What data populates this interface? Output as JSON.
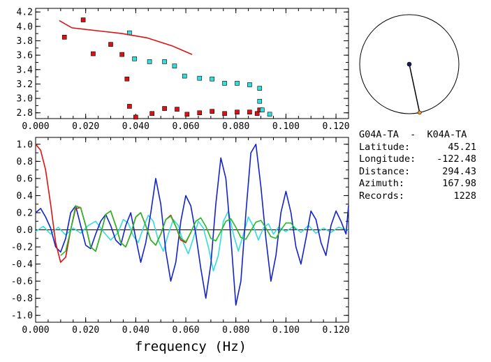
{
  "station_pair": "G04A-TA  -  K04A-TA",
  "info": [
    {
      "key": "Latitude:",
      "value": "45.21"
    },
    {
      "key": "Longitude:",
      "value": "-122.48"
    },
    {
      "key": "Distance:",
      "value": "294.43"
    },
    {
      "key": "Azimuth:",
      "value": "167.98"
    },
    {
      "key": "Records:",
      "value": "1228"
    }
  ],
  "colors": {
    "red": "#dd1111",
    "cyan": "#33dddd",
    "blue": "#1122cc",
    "green": "#22bb22",
    "orange": "#f0a020"
  },
  "chart_data": [
    {
      "type": "scatter",
      "xlim": [
        0.0,
        0.125
      ],
      "ylim": [
        2.72,
        4.25
      ],
      "x_ticks": [
        "0.000",
        "0.020",
        "0.040",
        "0.060",
        "0.080",
        "0.100",
        "0.120"
      ],
      "y_ticks": [
        "2.8",
        "3.0",
        "3.2",
        "3.4",
        "3.6",
        "3.8",
        "4.0",
        "4.2"
      ],
      "series": [
        {
          "marker": "square",
          "color": "red",
          "points": [
            [
              0.0115,
              3.85
            ],
            [
              0.019,
              4.09
            ],
            [
              0.023,
              3.62
            ],
            [
              0.03,
              3.75
            ],
            [
              0.0345,
              3.61
            ],
            [
              0.0365,
              3.27
            ],
            [
              0.0375,
              2.89
            ],
            [
              0.04,
              2.74
            ],
            [
              0.0465,
              2.79
            ],
            [
              0.0515,
              2.86
            ],
            [
              0.0565,
              2.85
            ],
            [
              0.0605,
              2.78
            ],
            [
              0.0655,
              2.8
            ],
            [
              0.0705,
              2.82
            ],
            [
              0.0755,
              2.79
            ],
            [
              0.0805,
              2.81
            ],
            [
              0.0855,
              2.81
            ],
            [
              0.0885,
              2.79
            ],
            [
              0.0895,
              2.84
            ]
          ]
        },
        {
          "marker": "square",
          "color": "cyan",
          "points": [
            [
              0.0375,
              3.91
            ],
            [
              0.0395,
              3.55
            ],
            [
              0.0455,
              3.51
            ],
            [
              0.0515,
              3.51
            ],
            [
              0.0555,
              3.45
            ],
            [
              0.0595,
              3.31
            ],
            [
              0.0655,
              3.28
            ],
            [
              0.0705,
              3.27
            ],
            [
              0.0755,
              3.21
            ],
            [
              0.0805,
              3.21
            ],
            [
              0.0855,
              3.19
            ],
            [
              0.0895,
              3.14
            ],
            [
              0.0895,
              2.96
            ],
            [
              0.0905,
              2.84
            ],
            [
              0.0935,
              2.78
            ]
          ]
        },
        {
          "marker": "line",
          "color": "red",
          "points": [
            [
              0.0095,
              4.08
            ],
            [
              0.0145,
              3.98
            ],
            [
              0.0245,
              3.94
            ],
            [
              0.0345,
              3.9
            ],
            [
              0.0445,
              3.84
            ],
            [
              0.0545,
              3.73
            ],
            [
              0.0625,
              3.61
            ]
          ]
        }
      ]
    },
    {
      "type": "line",
      "xlabel": "frequency (Hz)",
      "xlim": [
        0.0,
        0.125
      ],
      "ylim": [
        -1.08,
        1.08
      ],
      "x_ticks": [
        "0.000",
        "0.020",
        "0.040",
        "0.060",
        "0.080",
        "0.100",
        "0.120"
      ],
      "y_ticks": [
        "1.0",
        "0.8",
        "0.6",
        "0.4",
        "0.2",
        "0.0",
        "-0.2",
        "-0.4",
        "-0.6",
        "-0.8",
        "-1.0"
      ],
      "series": [
        {
          "color": "cyan",
          "points": [
            [
              0.0,
              -0.02
            ],
            [
              0.003,
              0.04
            ],
            [
              0.006,
              -0.05
            ],
            [
              0.009,
              0.03
            ],
            [
              0.012,
              -0.06
            ],
            [
              0.015,
              0.02
            ],
            [
              0.018,
              -0.04
            ],
            [
              0.021,
              0.05
            ],
            [
              0.024,
              0.1
            ],
            [
              0.027,
              -0.02
            ],
            [
              0.03,
              -0.12
            ],
            [
              0.033,
              -0.03
            ],
            [
              0.035,
              0.12
            ],
            [
              0.037,
              0.08
            ],
            [
              0.039,
              -0.07
            ],
            [
              0.041,
              -0.15
            ],
            [
              0.043,
              0.02
            ],
            [
              0.045,
              0.17
            ],
            [
              0.047,
              0.1
            ],
            [
              0.049,
              -0.12
            ],
            [
              0.051,
              -0.25
            ],
            [
              0.053,
              -0.05
            ],
            [
              0.055,
              0.12
            ],
            [
              0.057,
              0.05
            ],
            [
              0.059,
              -0.15
            ],
            [
              0.061,
              -0.28
            ],
            [
              0.063,
              -0.1
            ],
            [
              0.065,
              0.1
            ],
            [
              0.067,
              0.02
            ],
            [
              0.069,
              -0.2
            ],
            [
              0.071,
              -0.48
            ],
            [
              0.073,
              -0.3
            ],
            [
              0.075,
              0.1
            ],
            [
              0.077,
              0.22
            ],
            [
              0.079,
              -0.05
            ],
            [
              0.081,
              -0.25
            ],
            [
              0.083,
              -0.05
            ],
            [
              0.085,
              0.15
            ],
            [
              0.087,
              0.04
            ],
            [
              0.089,
              -0.12
            ],
            [
              0.091,
              0.02
            ],
            [
              0.093,
              0.07
            ],
            [
              0.095,
              -0.05
            ],
            [
              0.097,
              0.03
            ],
            [
              0.1,
              -0.02
            ],
            [
              0.103,
              0.04
            ],
            [
              0.106,
              -0.03
            ],
            [
              0.109,
              0.05
            ],
            [
              0.112,
              -0.04
            ],
            [
              0.115,
              0.02
            ],
            [
              0.118,
              -0.03
            ],
            [
              0.121,
              0.03
            ],
            [
              0.125,
              -0.01
            ]
          ]
        },
        {
          "color": "blue",
          "points": [
            [
              0.0,
              0.2
            ],
            [
              0.002,
              0.25
            ],
            [
              0.004,
              0.15
            ],
            [
              0.006,
              0.02
            ],
            [
              0.008,
              -0.2
            ],
            [
              0.01,
              -0.26
            ],
            [
              0.012,
              -0.1
            ],
            [
              0.014,
              0.2
            ],
            [
              0.016,
              0.28
            ],
            [
              0.018,
              0.05
            ],
            [
              0.02,
              -0.18
            ],
            [
              0.022,
              -0.22
            ],
            [
              0.024,
              -0.05
            ],
            [
              0.026,
              0.1
            ],
            [
              0.028,
              0.18
            ],
            [
              0.03,
              0.05
            ],
            [
              0.032,
              -0.12
            ],
            [
              0.034,
              -0.18
            ],
            [
              0.036,
              0.05
            ],
            [
              0.038,
              0.2
            ],
            [
              0.04,
              -0.1
            ],
            [
              0.042,
              -0.38
            ],
            [
              0.044,
              -0.15
            ],
            [
              0.046,
              0.2
            ],
            [
              0.048,
              0.6
            ],
            [
              0.05,
              0.3
            ],
            [
              0.052,
              -0.25
            ],
            [
              0.054,
              -0.6
            ],
            [
              0.056,
              -0.38
            ],
            [
              0.058,
              0.1
            ],
            [
              0.06,
              0.4
            ],
            [
              0.062,
              0.28
            ],
            [
              0.064,
              -0.05
            ],
            [
              0.066,
              -0.45
            ],
            [
              0.068,
              -0.8
            ],
            [
              0.07,
              -0.4
            ],
            [
              0.072,
              0.3
            ],
            [
              0.074,
              0.84
            ],
            [
              0.076,
              0.6
            ],
            [
              0.078,
              -0.1
            ],
            [
              0.08,
              -0.88
            ],
            [
              0.082,
              -0.6
            ],
            [
              0.084,
              0.2
            ],
            [
              0.086,
              0.9
            ],
            [
              0.088,
              1.0
            ],
            [
              0.09,
              0.5
            ],
            [
              0.092,
              -0.1
            ],
            [
              0.094,
              -0.6
            ],
            [
              0.096,
              -0.3
            ],
            [
              0.098,
              0.2
            ],
            [
              0.1,
              0.45
            ],
            [
              0.102,
              0.2
            ],
            [
              0.104,
              -0.2
            ],
            [
              0.106,
              -0.4
            ],
            [
              0.108,
              -0.1
            ],
            [
              0.11,
              0.22
            ],
            [
              0.112,
              0.12
            ],
            [
              0.114,
              -0.15
            ],
            [
              0.116,
              -0.3
            ],
            [
              0.118,
              0.05
            ],
            [
              0.12,
              0.22
            ],
            [
              0.122,
              0.1
            ],
            [
              0.124,
              -0.05
            ],
            [
              0.125,
              0.28
            ]
          ]
        },
        {
          "color": "red",
          "points": [
            [
              0.0,
              1.0
            ],
            [
              0.002,
              0.93
            ],
            [
              0.004,
              0.7
            ],
            [
              0.006,
              0.3
            ],
            [
              0.008,
              -0.15
            ],
            [
              0.01,
              -0.38
            ],
            [
              0.012,
              -0.32
            ],
            [
              0.014,
              0.0
            ],
            [
              0.016,
              0.25
            ],
            [
              0.018,
              0.26
            ],
            [
              0.02,
              0.05
            ],
            [
              0.022,
              -0.2
            ],
            [
              0.024,
              -0.25
            ],
            [
              0.026,
              -0.05
            ],
            [
              0.028,
              0.18
            ],
            [
              0.03,
              0.22
            ],
            [
              0.032,
              0.05
            ],
            [
              0.034,
              -0.15
            ],
            [
              0.036,
              -0.2
            ],
            [
              0.038,
              -0.05
            ],
            [
              0.04,
              0.15
            ],
            [
              0.042,
              0.2
            ],
            [
              0.044,
              0.05
            ],
            [
              0.046,
              -0.12
            ],
            [
              0.048,
              -0.18
            ],
            [
              0.05,
              -0.05
            ],
            [
              0.052,
              0.12
            ],
            [
              0.054,
              0.17
            ],
            [
              0.056,
              0.04
            ],
            [
              0.058,
              -0.12
            ],
            [
              0.06,
              -0.15
            ],
            [
              0.062,
              -0.03
            ]
          ]
        },
        {
          "color": "green",
          "points": [
            [
              0.01,
              -0.3
            ],
            [
              0.012,
              -0.25
            ],
            [
              0.014,
              0.0
            ],
            [
              0.016,
              0.28
            ],
            [
              0.018,
              0.26
            ],
            [
              0.02,
              0.05
            ],
            [
              0.022,
              -0.2
            ],
            [
              0.024,
              -0.25
            ],
            [
              0.026,
              -0.05
            ],
            [
              0.028,
              0.18
            ],
            [
              0.03,
              0.22
            ],
            [
              0.032,
              0.05
            ],
            [
              0.034,
              -0.15
            ],
            [
              0.036,
              -0.2
            ],
            [
              0.038,
              -0.05
            ],
            [
              0.04,
              0.15
            ],
            [
              0.042,
              0.2
            ],
            [
              0.044,
              0.05
            ],
            [
              0.046,
              -0.12
            ],
            [
              0.048,
              -0.18
            ],
            [
              0.05,
              -0.05
            ],
            [
              0.052,
              0.12
            ],
            [
              0.054,
              0.16
            ],
            [
              0.056,
              0.04
            ],
            [
              0.058,
              -0.1
            ],
            [
              0.06,
              -0.14
            ],
            [
              0.062,
              -0.03
            ],
            [
              0.064,
              0.1
            ],
            [
              0.066,
              0.14
            ],
            [
              0.068,
              0.04
            ],
            [
              0.07,
              -0.1
            ],
            [
              0.072,
              -0.13
            ],
            [
              0.074,
              -0.02
            ],
            [
              0.076,
              0.1
            ],
            [
              0.078,
              0.13
            ],
            [
              0.08,
              0.03
            ],
            [
              0.082,
              -0.09
            ],
            [
              0.084,
              -0.11
            ],
            [
              0.086,
              -0.01
            ],
            [
              0.088,
              0.09
            ],
            [
              0.09,
              0.11
            ],
            [
              0.092,
              0.02
            ],
            [
              0.094,
              -0.08
            ],
            [
              0.096,
              -0.1
            ],
            [
              0.098,
              0.0
            ],
            [
              0.1,
              0.08
            ],
            [
              0.102,
              0.08
            ],
            [
              0.104,
              0.0
            ]
          ]
        }
      ]
    },
    {
      "type": "azimuth-map",
      "azimuth_deg": 167.98,
      "station_a": "G04A-TA",
      "station_b": "K04A-TA"
    }
  ]
}
